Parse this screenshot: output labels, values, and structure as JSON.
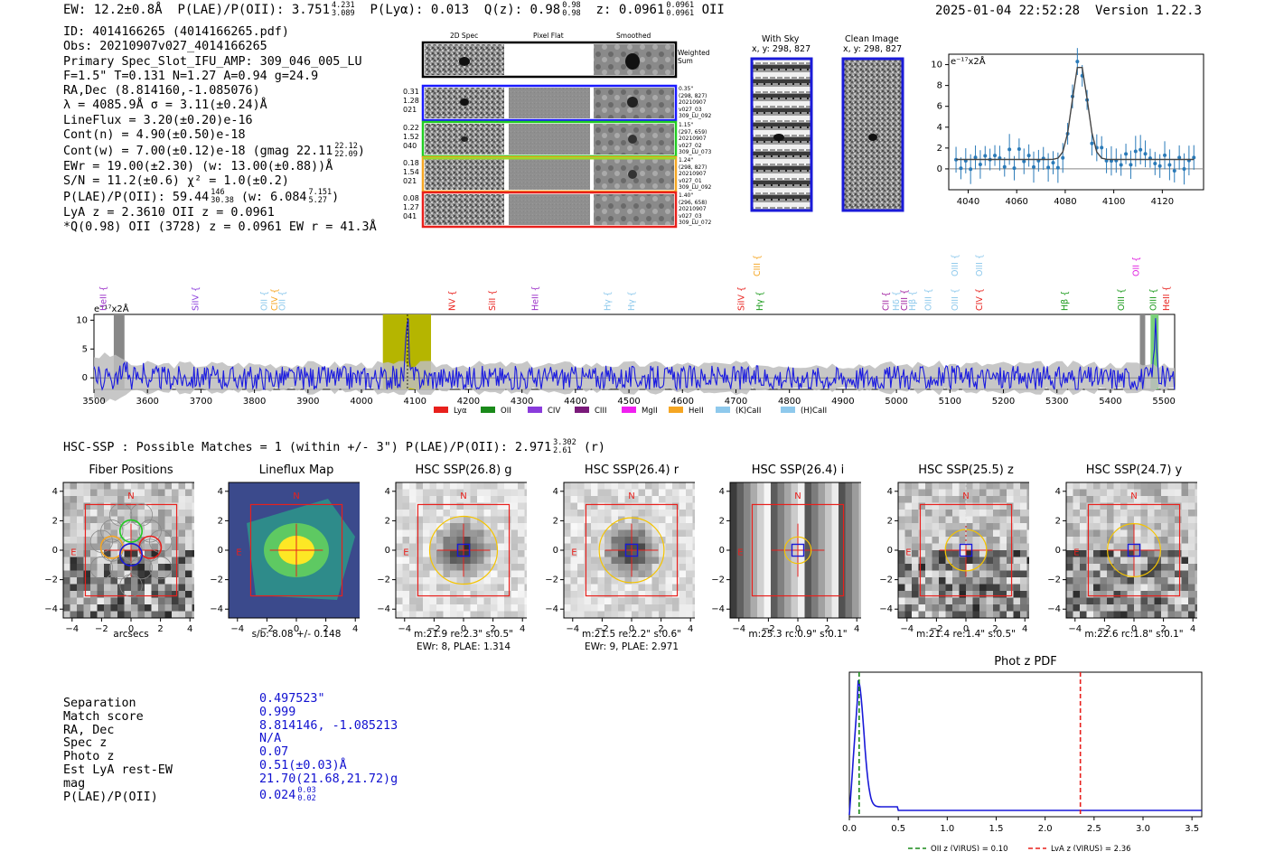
{
  "header": {
    "ew": "EW: 12.2±0.8Å",
    "plae_label": "P(LAE)/P(OII): 3.751",
    "plae_hi": "4.231",
    "plae_lo": "3.089",
    "plya": "P(Lyα): 0.013",
    "qz_label": "Q(z): 0.98",
    "qz_hi": "0.98",
    "qz_lo": "0.98",
    "z_label": "z: 0.0961",
    "z_hi": "0.0961",
    "z_lo": "0.0961",
    "z_line": "OII",
    "datetime": "2025-01-04 22:52:28",
    "version": "Version 1.22.3"
  },
  "info": {
    "id": "ID: 4014166265 (4014166265.pdf)",
    "obs": "Obs: 20210907v027_4014166265",
    "primary": "Primary Spec_Slot_IFU_AMP: 309_046_005_LU",
    "fit": "F=1.5\"  T=0.131  N=1.27  A=0.94  g=24.9",
    "radec": "RA,Dec (8.814160,-1.085076)",
    "lambda": "λ = 4085.9Å  σ = 3.11(±0.24)Å",
    "lineflux": "LineFlux = 3.20(±0.20)e-16",
    "contn": "Cont(n) = 4.90(±0.50)e-18",
    "contw": "Cont(w) = 7.00(±0.12)e-18 (gmag 22.11",
    "contw_hi": "22.12",
    "contw_lo": "22.09",
    "ewr": "EWr = 19.00(±2.30) (w: 13.00(±0.88))Å",
    "sn": "S/N = 11.2(±0.6)  χ² = 1.0(±0.2)",
    "plae": "P(LAE)/P(OII): 59.44",
    "plae_hi": "146",
    "plae_lo": "30.38",
    "plae_w": "(w: 6.084",
    "plae_w_hi": "7.151",
    "plae_w_lo": "5.27",
    "lya_z": "LyA z = 2.3610  OII z = 0.0961",
    "qline": "*Q(0.98) OII (3728) z = 0.0961  EW r = 41.3Å"
  },
  "cutouts": {
    "col_2d": "2D Spec",
    "col_flat": "Pixel Flat",
    "col_smooth": "Smoothed",
    "weighted": "Weighted Sum",
    "rows": [
      {
        "left": [
          "0.31",
          "1.28",
          "021"
        ],
        "right": [
          "0.35\"",
          "(298, 827)",
          "20210907",
          "v027_03",
          "309_LU_092"
        ]
      },
      {
        "left": [
          "0.22",
          "1.52",
          "040"
        ],
        "right": [
          "1.15\"",
          "(297, 659)",
          "20210907",
          "v027_02",
          "309_LU_073"
        ]
      },
      {
        "left": [
          "0.18",
          "1.54",
          "021"
        ],
        "right": [
          "1.24\"",
          "(298, 827)",
          "20210907",
          "v027_01",
          "309_LU_092"
        ]
      },
      {
        "left": [
          "0.08",
          "1.27",
          "041"
        ],
        "right": [
          "1.40\"",
          "(296, 658)",
          "20210907",
          "v027_03",
          "309_LU_072"
        ]
      }
    ],
    "with_sky": "With Sky",
    "with_sky_xy": "x, y: 298, 827",
    "clean": "Clean Image",
    "clean_xy": "x, y: 298, 827"
  },
  "zoom_chart": {
    "type": "line",
    "unit_label": "e⁻¹⁷x2Å",
    "xlim": [
      4032,
      4137
    ],
    "ylim": [
      -2,
      11
    ],
    "xticks": [
      "4040",
      "4060",
      "4080",
      "4100",
      "4120"
    ],
    "yticks": [
      "0",
      "2",
      "4",
      "6",
      "8",
      "10"
    ]
  },
  "chart_data": {
    "type": "line",
    "title": "",
    "xlabel": "",
    "ylabel": "e⁻¹⁷x2Å",
    "xlim": [
      3500,
      5520
    ],
    "ylim": [
      -2,
      11
    ],
    "xticks": [
      "3500",
      "3600",
      "3700",
      "3800",
      "3900",
      "4000",
      "4100",
      "4200",
      "4300",
      "4400",
      "4500",
      "4600",
      "4700",
      "4800",
      "4900",
      "5000",
      "5100",
      "5200",
      "5300",
      "5400",
      "5500"
    ],
    "yticks": [
      "0",
      "5",
      "10"
    ],
    "peak_wavelength": 4086,
    "peak_value": 9.5,
    "highlight_band": [
      4040,
      4130
    ],
    "grey_bands": [
      [
        3537,
        3557
      ],
      [
        5455,
        5465
      ]
    ],
    "green_band": [
      5475,
      5490
    ],
    "lines": [
      {
        "label": "HeII",
        "wl": 3518,
        "color": "#9b30c8",
        "row": 0
      },
      {
        "label": "SiIV",
        "wl": 3690,
        "color": "#8a3bdc",
        "row": 0
      },
      {
        "label": "OII",
        "wl": 3818,
        "color": "#8ec9ec",
        "row": 0
      },
      {
        "label": "CIV",
        "wl": 3838,
        "color": "#f5a623",
        "row": 0
      },
      {
        "label": "OII",
        "wl": 3852,
        "color": "#8ec9ec",
        "row": 0
      },
      {
        "label": "NV",
        "wl": 4170,
        "color": "#e8201c",
        "row": 0
      },
      {
        "label": "SiII",
        "wl": 4245,
        "color": "#e8201c",
        "row": 0
      },
      {
        "label": "HeII",
        "wl": 4325,
        "color": "#9b30c8",
        "row": 0
      },
      {
        "label": "Hγ",
        "wl": 4460,
        "color": "#8ec9ec",
        "row": 0
      },
      {
        "label": "Hγ",
        "wl": 4505,
        "color": "#8ec9ec",
        "row": 0
      },
      {
        "label": "SiIV",
        "wl": 4710,
        "color": "#e8201c",
        "row": 0
      },
      {
        "label": "CIII",
        "wl": 4740,
        "color": "#f5a623",
        "row": 1
      },
      {
        "label": "Hγ",
        "wl": 4745,
        "color": "#1a9a1a",
        "row": 0
      },
      {
        "label": "CII",
        "wl": 4980,
        "color": "#a020a0",
        "row": 0
      },
      {
        "label": "Hδ",
        "wl": 5000,
        "color": "#8ec9ec",
        "row": 0
      },
      {
        "label": "CIII",
        "wl": 5015,
        "color": "#a020a0",
        "row": 0
      },
      {
        "label": "Hβ",
        "wl": 5030,
        "color": "#8ec9ec",
        "row": 0
      },
      {
        "label": "OIII",
        "wl": 5060,
        "color": "#8ec9ec",
        "row": 0
      },
      {
        "label": "OIII",
        "wl": 5110,
        "color": "#8ec9ec",
        "row": 0
      },
      {
        "label": "OIII",
        "wl": 5110,
        "color": "#8ec9ec",
        "row": 1
      },
      {
        "label": "CIV",
        "wl": 5155,
        "color": "#e8201c",
        "row": 0
      },
      {
        "label": "OIII",
        "wl": 5155,
        "color": "#8ec9ec",
        "row": 1
      },
      {
        "label": "Hβ",
        "wl": 5315,
        "color": "#1a9a1a",
        "row": 0
      },
      {
        "label": "OIII",
        "wl": 5420,
        "color": "#1a9a1a",
        "row": 0
      },
      {
        "label": "OII",
        "wl": 5448,
        "color": "#e020e0",
        "row": 1
      },
      {
        "label": "OIII",
        "wl": 5480,
        "color": "#1a9a1a",
        "row": 0
      },
      {
        "label": "HeII",
        "wl": 5505,
        "color": "#e8201c",
        "row": 0
      }
    ],
    "legend": [
      {
        "label": "Lyα",
        "color": "#e8201c"
      },
      {
        "label": "OII",
        "color": "#1a8a1a"
      },
      {
        "label": "CIV",
        "color": "#8a3bdc"
      },
      {
        "label": "CIII",
        "color": "#7a1a7a"
      },
      {
        "label": "MgII",
        "color": "#f020f0"
      },
      {
        "label": "HeII",
        "color": "#f5a623"
      },
      {
        "label": "(K)CaII",
        "color": "#8ec9ec"
      },
      {
        "label": "(H)CaII",
        "color": "#8ec9ec"
      }
    ]
  },
  "hsc": {
    "summary": "HSC-SSP : Possible Matches = 1 (within +/- 3\")  P(LAE)/P(OII): 2.971",
    "summary_hi": "3.302",
    "summary_lo": "2.61",
    "summary_band": "(r)",
    "axis_ticks": [
      "−4",
      "−2",
      "0",
      "2",
      "4"
    ],
    "panels": [
      {
        "title": "Fiber Positions",
        "caption1": "arcsecs",
        "caption2": ""
      },
      {
        "title": "Lineflux Map",
        "caption1": "s/b: 8.08 +/- 0.148",
        "caption2": ""
      },
      {
        "title": "HSC SSP(26.8) g",
        "caption1": "m:21.9  re:2.3\"  s:0.5\"",
        "caption2": "EWr: 8, PLAE: 1.314"
      },
      {
        "title": "HSC SSP(26.4) r",
        "caption1": "m:21.5  re:2.2\"  s:0.6\"",
        "caption2": "EWr: 9, PLAE: 2.971"
      },
      {
        "title": "HSC SSP(26.4) i",
        "caption1": "m:25.3 rc:0.9\"  s:0.1\"",
        "caption2": ""
      },
      {
        "title": "HSC SSP(25.5) z",
        "caption1": "m:21.4  re:1.4\"  s:0.5\"",
        "caption2": ""
      },
      {
        "title": "HSC SSP(24.7) y",
        "caption1": "m:22.6 rc:1.8\"  s:0.1\"",
        "caption2": ""
      }
    ],
    "compass_n": "N",
    "compass_e": "E"
  },
  "match": {
    "labels": [
      "Separation",
      "Match score",
      "RA, Dec",
      "Spec z",
      "Photo z",
      "Est LyA rest-EW",
      "mag",
      "P(LAE)/P(OII)"
    ],
    "separation": "0.497523\"",
    "match_score": "0.999",
    "radec": "8.814146, -1.085213",
    "spec_z": "N/A",
    "photo_z": "0.07",
    "lya_ew": "0.51(±0.03)Å",
    "mag": "21.70(21.68,21.72)g",
    "plae": "0.024",
    "plae_hi": "0.03",
    "plae_lo": "0.02"
  },
  "photoz": {
    "title": "Phot z PDF",
    "xticks": [
      "0.0",
      "0.5",
      "1.0",
      "1.5",
      "2.0",
      "2.5",
      "3.0",
      "3.5"
    ],
    "xlim": [
      0,
      3.6
    ],
    "oii_z": 0.1,
    "lya_z": 2.36,
    "legend_oii": "OII z (VIRUS) = 0.10",
    "legend_lya": "LyA z (VIRUS) = 2.36"
  }
}
